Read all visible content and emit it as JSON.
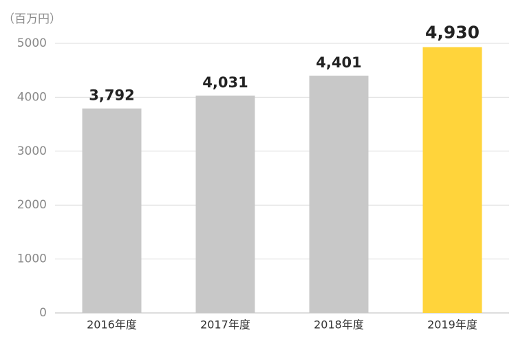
{
  "chart_data": {
    "type": "bar",
    "y_axis_label": "（百万円）",
    "categories": [
      "2016年度",
      "2017年度",
      "2018年度",
      "2019年度"
    ],
    "values": [
      3792,
      4031,
      4401,
      4930
    ],
    "value_labels": [
      "3,792",
      "4,031",
      "4,401",
      "4,930"
    ],
    "colors": [
      "#c8c8c8",
      "#c8c8c8",
      "#c8c8c8",
      "#ffd43b"
    ],
    "ylim": [
      0,
      5000
    ],
    "yticks": [
      0,
      1000,
      2000,
      3000,
      4000,
      5000
    ],
    "grid": true
  }
}
